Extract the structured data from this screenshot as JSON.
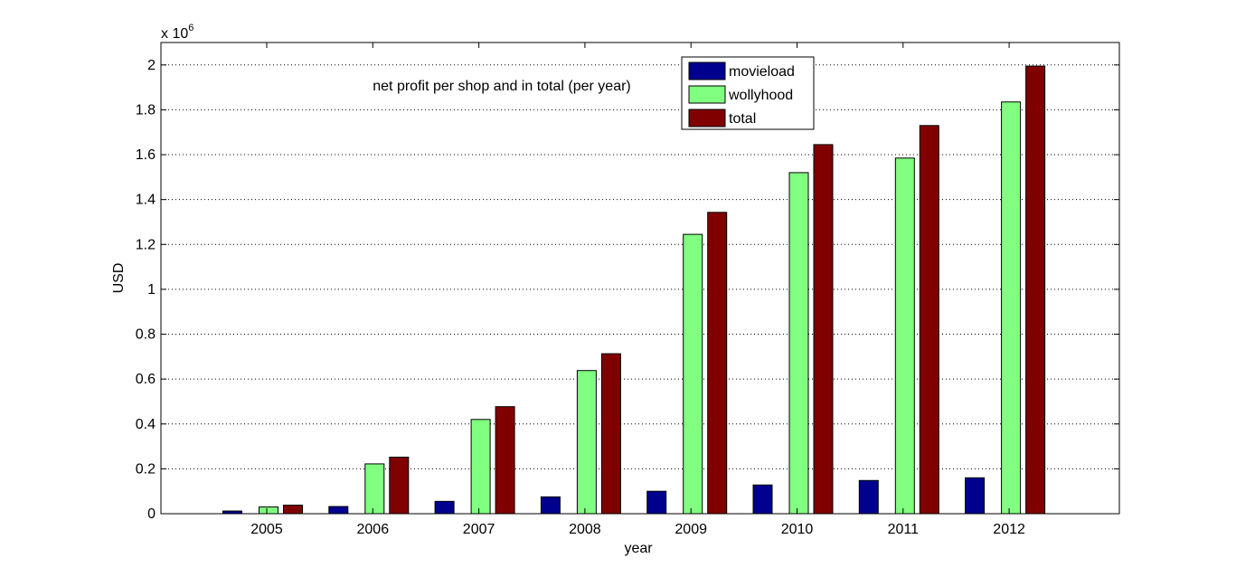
{
  "chart_data": {
    "type": "bar",
    "title": "net profit per shop and in total (per year)",
    "xlabel": "year",
    "ylabel": "USD",
    "y_exponent_label": "x 10",
    "y_exponent_power": "6",
    "categories": [
      "2005",
      "2006",
      "2007",
      "2008",
      "2009",
      "2010",
      "2011",
      "2012"
    ],
    "y_ticks": [
      "0",
      "0.2",
      "0.4",
      "0.6",
      "0.8",
      "1",
      "1.2",
      "1.4",
      "1.6",
      "1.8",
      "2"
    ],
    "ylim": [
      0,
      2.1
    ],
    "grid": true,
    "legend_position": "top-center",
    "series": [
      {
        "name": "movieload",
        "color": "#00008f",
        "values": [
          0.012,
          0.032,
          0.055,
          0.075,
          0.1,
          0.128,
          0.148,
          0.16
        ]
      },
      {
        "name": "wollyhood",
        "color": "#80ff80",
        "values": [
          0.03,
          0.222,
          0.42,
          0.638,
          1.245,
          1.52,
          1.585,
          1.835
        ]
      },
      {
        "name": "total",
        "color": "#800000",
        "values": [
          0.038,
          0.252,
          0.477,
          0.713,
          1.343,
          1.645,
          1.73,
          1.995
        ]
      }
    ]
  }
}
